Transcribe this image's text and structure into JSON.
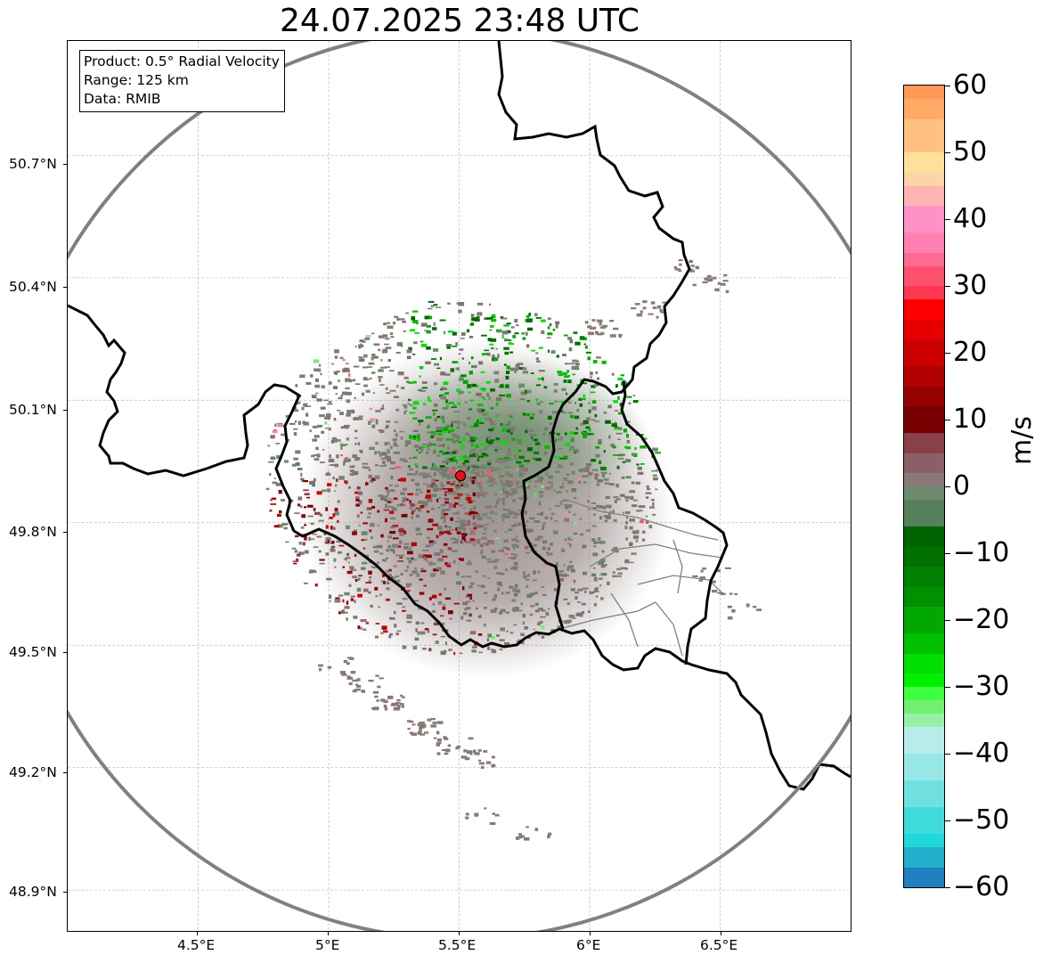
{
  "title": "24.07.2025 23:48 UTC",
  "info_box": {
    "product": "Product: 0.5° Radial Velocity",
    "range": "Range: 125 km",
    "data": "Data: RMIB"
  },
  "map": {
    "lon_range": [
      4.0,
      7.0
    ],
    "lat_range": [
      48.8,
      50.98
    ],
    "radar_site": {
      "lon": 5.505,
      "lat": 49.915,
      "color": "#e8101a"
    },
    "range_ring_km": 125,
    "lat_ticks": [
      {
        "value": 50.7,
        "label": "50.7°N"
      },
      {
        "value": 50.4,
        "label": "50.4°N"
      },
      {
        "value": 50.1,
        "label": "50.1°N"
      },
      {
        "value": 49.8,
        "label": "49.8°N"
      },
      {
        "value": 49.5,
        "label": "49.5°N"
      },
      {
        "value": 49.2,
        "label": "49.2°N"
      },
      {
        "value": 48.9,
        "label": "48.9°N"
      }
    ],
    "lon_ticks": [
      {
        "value": 4.5,
        "label": "4.5°E"
      },
      {
        "value": 5.0,
        "label": "5°E"
      },
      {
        "value": 5.5,
        "label": "5.5°E"
      },
      {
        "value": 6.0,
        "label": "6°E"
      },
      {
        "value": 6.5,
        "label": "6.5°E"
      }
    ]
  },
  "colorbar": {
    "label": "m/s",
    "min": -60,
    "max": 60,
    "ticks": [
      60,
      50,
      40,
      30,
      20,
      10,
      0,
      -10,
      -20,
      -30,
      -40,
      -50,
      -60
    ],
    "tick_labels": [
      "60",
      "50",
      "40",
      "30",
      "20",
      "10",
      "0",
      "−10",
      "−20",
      "−30",
      "−40",
      "−50",
      "−60"
    ],
    "bands": [
      {
        "from": 58,
        "to": 60,
        "color": "#ff9955"
      },
      {
        "from": 55,
        "to": 58,
        "color": "#ffaa66"
      },
      {
        "from": 50,
        "to": 55,
        "color": "#ffc080"
      },
      {
        "from": 47,
        "to": 50,
        "color": "#ffe09a"
      },
      {
        "from": 45,
        "to": 47,
        "color": "#ffd2a8"
      },
      {
        "from": 42,
        "to": 45,
        "color": "#ffb4b4"
      },
      {
        "from": 38,
        "to": 42,
        "color": "#ff90c8"
      },
      {
        "from": 35,
        "to": 38,
        "color": "#ff80b0"
      },
      {
        "from": 33,
        "to": 35,
        "color": "#ff6a90"
      },
      {
        "from": 30,
        "to": 33,
        "color": "#ff5070"
      },
      {
        "from": 28,
        "to": 30,
        "color": "#ff3850"
      },
      {
        "from": 25,
        "to": 28,
        "color": "#ff0000"
      },
      {
        "from": 22,
        "to": 25,
        "color": "#e60000"
      },
      {
        "from": 18,
        "to": 22,
        "color": "#cc0000"
      },
      {
        "from": 15,
        "to": 18,
        "color": "#b00000"
      },
      {
        "from": 12,
        "to": 15,
        "color": "#950000"
      },
      {
        "from": 8,
        "to": 12,
        "color": "#780000"
      },
      {
        "from": 5,
        "to": 8,
        "color": "#8a4048"
      },
      {
        "from": 2,
        "to": 5,
        "color": "#8a6068"
      },
      {
        "from": 0,
        "to": 2,
        "color": "#8a7878"
      },
      {
        "from": -2,
        "to": 0,
        "color": "#6e8a6e"
      },
      {
        "from": -6,
        "to": -2,
        "color": "#56805a"
      },
      {
        "from": -9,
        "to": -6,
        "color": "#006400"
      },
      {
        "from": -12,
        "to": -9,
        "color": "#007000"
      },
      {
        "from": -15,
        "to": -12,
        "color": "#008000"
      },
      {
        "from": -18,
        "to": -15,
        "color": "#009000"
      },
      {
        "from": -22,
        "to": -18,
        "color": "#00a800"
      },
      {
        "from": -25,
        "to": -22,
        "color": "#00c000"
      },
      {
        "from": -28,
        "to": -25,
        "color": "#00e000"
      },
      {
        "from": -30,
        "to": -28,
        "color": "#00f000"
      },
      {
        "from": -32,
        "to": -30,
        "color": "#40ff40"
      },
      {
        "from": -34,
        "to": -32,
        "color": "#70f070"
      },
      {
        "from": -36,
        "to": -34,
        "color": "#98f0a8"
      },
      {
        "from": -40,
        "to": -36,
        "color": "#b8ecec"
      },
      {
        "from": -44,
        "to": -40,
        "color": "#98e8e8"
      },
      {
        "from": -48,
        "to": -44,
        "color": "#70e0e0"
      },
      {
        "from": -52,
        "to": -48,
        "color": "#40dcdc"
      },
      {
        "from": -54,
        "to": -52,
        "color": "#20d8d8"
      },
      {
        "from": -57,
        "to": -54,
        "color": "#20b0cc"
      },
      {
        "from": -60,
        "to": -57,
        "color": "#1e80c0"
      }
    ]
  },
  "colors": {
    "border": "#000000",
    "admin_border": "#808080",
    "range_ring": "#808080",
    "grid": "#bbbbbb",
    "echo_gray": "#8a7878",
    "echo_green_gray": "#6e8a6e"
  }
}
